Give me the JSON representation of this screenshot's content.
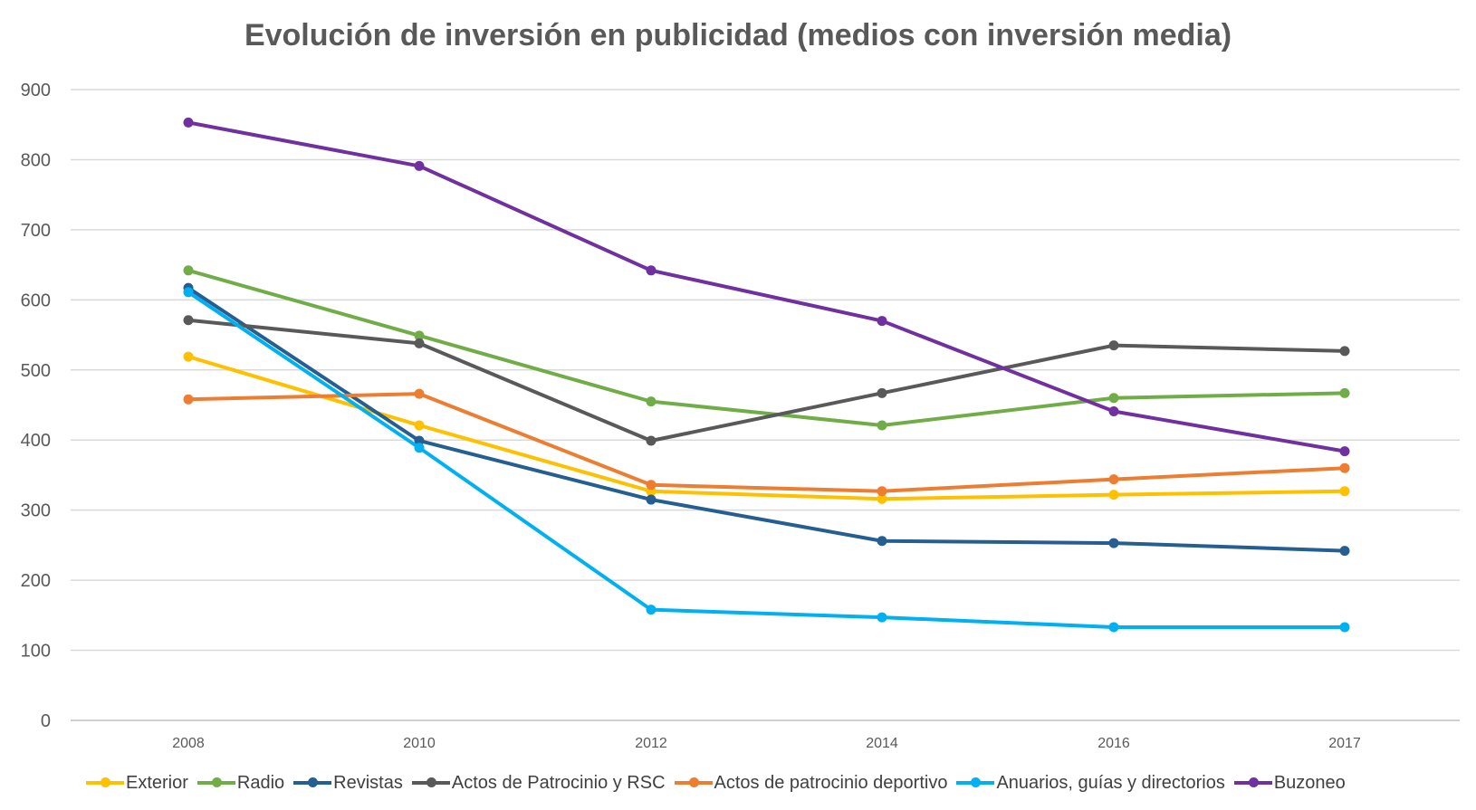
{
  "chart_data": {
    "type": "line",
    "title": "Evolución de inversión en publicidad (medios con inversión media)",
    "xlabel": "",
    "ylabel": "",
    "categories": [
      "2008",
      "2010",
      "2012",
      "2014",
      "2016",
      "2017"
    ],
    "ylim": [
      0,
      900
    ],
    "yticks": [
      "0",
      "100",
      "200",
      "300",
      "400",
      "500",
      "600",
      "700",
      "800",
      "900"
    ],
    "grid": true,
    "legend_position": "bottom",
    "series": [
      {
        "name": "Exterior",
        "color": "#FFC000",
        "values": [
          519,
          421,
          327,
          316,
          322,
          327
        ]
      },
      {
        "name": "Radio",
        "color": "#70AD47",
        "values": [
          642,
          549,
          455,
          421,
          460,
          467
        ]
      },
      {
        "name": "Revistas",
        "color": "#255E91",
        "values": [
          617,
          399,
          315,
          256,
          253,
          242
        ]
      },
      {
        "name": "Actos de Patrocinio y RSC",
        "color": "#595959",
        "values": [
          571,
          538,
          399,
          467,
          535,
          527
        ]
      },
      {
        "name": "Actos de patrocinio deportivo",
        "color": "#ED7D31",
        "values": [
          458,
          466,
          336,
          327,
          344,
          360
        ]
      },
      {
        "name": "Anuarios, guías y directorios",
        "color": "#00B0F0",
        "values": [
          611,
          389,
          158,
          147,
          133,
          133
        ]
      },
      {
        "name": "Buzoneo",
        "color": "#7030A0",
        "values": [
          853,
          791,
          642,
          570,
          441,
          384
        ]
      }
    ]
  }
}
